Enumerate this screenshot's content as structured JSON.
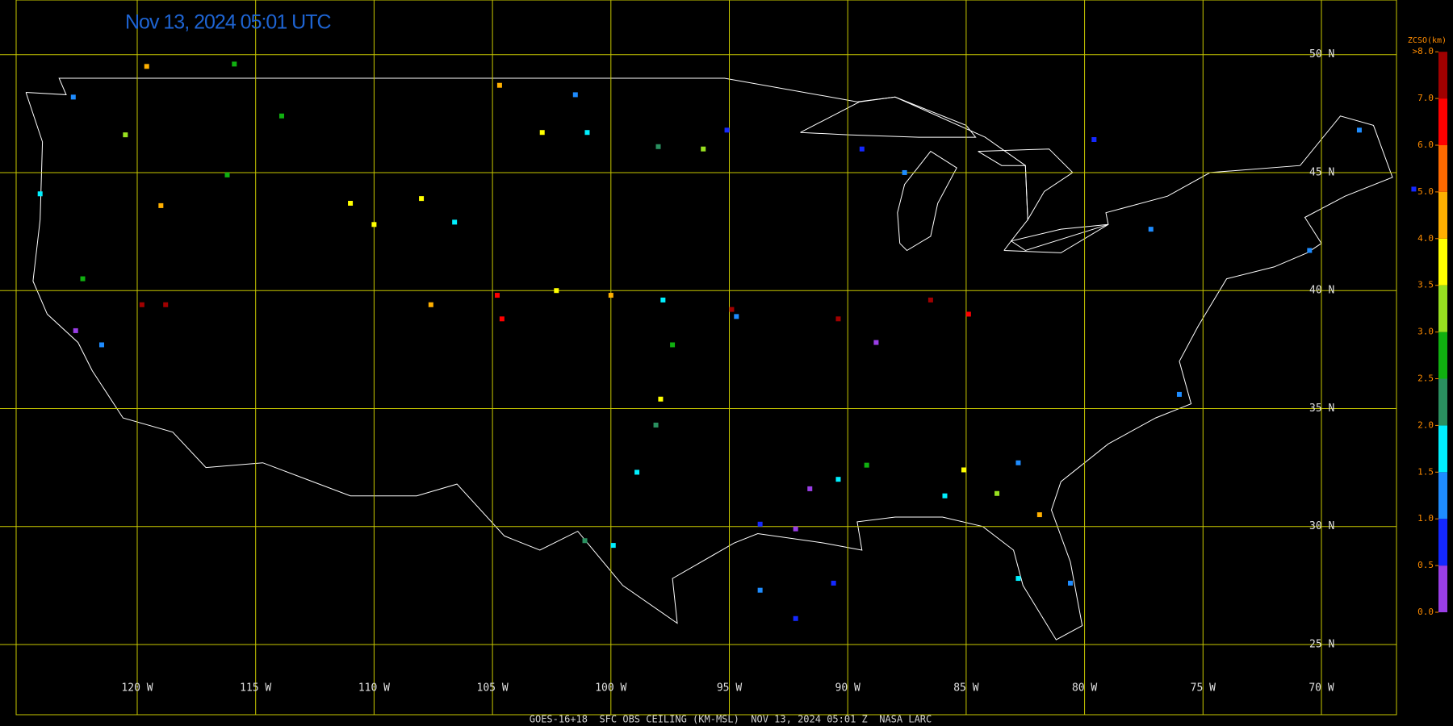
{
  "header": {
    "timestamp": "Nov 13, 2024 05:01 UTC"
  },
  "footer": {
    "caption": "GOES-16+18  SFC OBS CEILING (KM-MSL)  NOV 13, 2024 05:01 Z  NASA LARC"
  },
  "grid": {
    "lat_ticks": [
      {
        "value": 50,
        "label": "50 N"
      },
      {
        "value": 45,
        "label": "45 N"
      },
      {
        "value": 40,
        "label": "40 N"
      },
      {
        "value": 35,
        "label": "35 N"
      },
      {
        "value": 30,
        "label": "30 N"
      },
      {
        "value": 25,
        "label": "25 N"
      }
    ],
    "lon_ticks": [
      {
        "value": -120,
        "label": "120 W"
      },
      {
        "value": -115,
        "label": "115 W"
      },
      {
        "value": -110,
        "label": "110 W"
      },
      {
        "value": -105,
        "label": "105 W"
      },
      {
        "value": -100,
        "label": "100 W"
      },
      {
        "value": -95,
        "label": "95 W"
      },
      {
        "value": -90,
        "label": "90 W"
      },
      {
        "value": -85,
        "label": "85 W"
      },
      {
        "value": -80,
        "label": "80 W"
      },
      {
        "value": -75,
        "label": "75 W"
      },
      {
        "value": -70,
        "label": "70 W"
      }
    ],
    "color": "#c8c800"
  },
  "colorbar": {
    "title": "ZCSO(km)",
    "ticks": [
      {
        "value": 0,
        "label": "0.0"
      },
      {
        "value": 0.5,
        "label": "0.5"
      },
      {
        "value": 1,
        "label": "1.0"
      },
      {
        "value": 1.5,
        "label": "1.5"
      },
      {
        "value": 2,
        "label": "2.0"
      },
      {
        "value": 2.5,
        "label": "2.5"
      },
      {
        "value": 3,
        "label": "3.0"
      },
      {
        "value": 3.5,
        "label": "3.5"
      },
      {
        "value": 4,
        "label": "4.0"
      },
      {
        "value": 5,
        "label": "5.0"
      },
      {
        "value": 6,
        "label": "6.0"
      },
      {
        "value": 7,
        "label": "7.0"
      },
      {
        "value": 8,
        "label": ">8.0"
      }
    ],
    "colors": [
      "#9a3ee6",
      "#1428ff",
      "#1e8cff",
      "#00f0ff",
      "#2a9060",
      "#10b010",
      "#98e020",
      "#ffff00",
      "#ffb000",
      "#ff6a00",
      "#ff0000",
      "#a00000"
    ]
  },
  "stations": {
    "lon": [
      -122.7,
      -124.1,
      -119.6,
      -115.9,
      -120.5,
      -119.0,
      -122.3,
      -122.6,
      -121.5,
      -119.8,
      -118.8,
      -113.9,
      -116.2,
      -111.0,
      -110.0,
      -108.0,
      -106.6,
      -104.7,
      -102.9,
      -101.0,
      -98.0,
      -96.1,
      -101.5,
      -95.1,
      -107.6,
      -104.8,
      -104.6,
      -102.3,
      -100.0,
      -97.8,
      -97.4,
      -97.9,
      -98.1,
      -98.9,
      -99.9,
      -101.1,
      -94.9,
      -94.7,
      -90.4,
      -88.8,
      -86.5,
      -84.9,
      -91.6,
      -92.2,
      -93.7,
      -90.4,
      -89.2,
      -85.9,
      -85.1,
      -83.7,
      -82.8,
      -81.9,
      -80.6,
      -82.8,
      -93.7,
      -92.2,
      -90.6,
      -89.4,
      -87.6,
      -79.6,
      -77.2,
      -70.5,
      -68.4,
      -76.0,
      -66.1
    ],
    "lat": [
      48.2,
      44.1,
      49.5,
      49.6,
      46.6,
      43.6,
      40.5,
      38.3,
      37.7,
      39.4,
      39.4,
      47.4,
      44.9,
      43.7,
      42.8,
      43.9,
      42.9,
      48.7,
      46.7,
      46.7,
      46.1,
      46.0,
      48.3,
      46.8,
      39.4,
      39.8,
      38.8,
      40.0,
      39.8,
      39.6,
      37.7,
      35.4,
      34.3,
      32.3,
      29.2,
      29.4,
      39.2,
      38.9,
      38.8,
      37.8,
      39.6,
      39.0,
      31.6,
      29.9,
      30.1,
      32.0,
      32.6,
      31.3,
      32.4,
      31.4,
      32.7,
      30.5,
      27.6,
      27.8,
      27.3,
      26.1,
      27.6,
      46.0,
      45.0,
      46.4,
      42.6,
      41.7,
      46.8,
      35.6,
      44.3
    ],
    "ceiling": [
      1.2,
      1.8,
      4.6,
      2.8,
      3.2,
      4.6,
      2.8,
      0.3,
      1.3,
      7.3,
      7.3,
      2.7,
      2.8,
      3.8,
      3.8,
      3.8,
      1.8,
      4.6,
      3.8,
      1.8,
      2.3,
      3.2,
      1.0,
      0.8,
      4.6,
      6.3,
      6.5,
      3.8,
      4.6,
      1.7,
      2.8,
      3.9,
      2.3,
      1.8,
      1.7,
      2.2,
      7.3,
      1.3,
      7.4,
      0.3,
      7.3,
      6.3,
      0.3,
      0.2,
      0.8,
      1.7,
      2.8,
      1.7,
      3.9,
      3.3,
      1.3,
      4.5,
      1.3,
      1.8,
      1.3,
      0.8,
      0.8,
      0.8,
      1.2,
      0.9,
      1.3,
      1.3,
      1.3,
      1.3,
      0.9
    ]
  }
}
